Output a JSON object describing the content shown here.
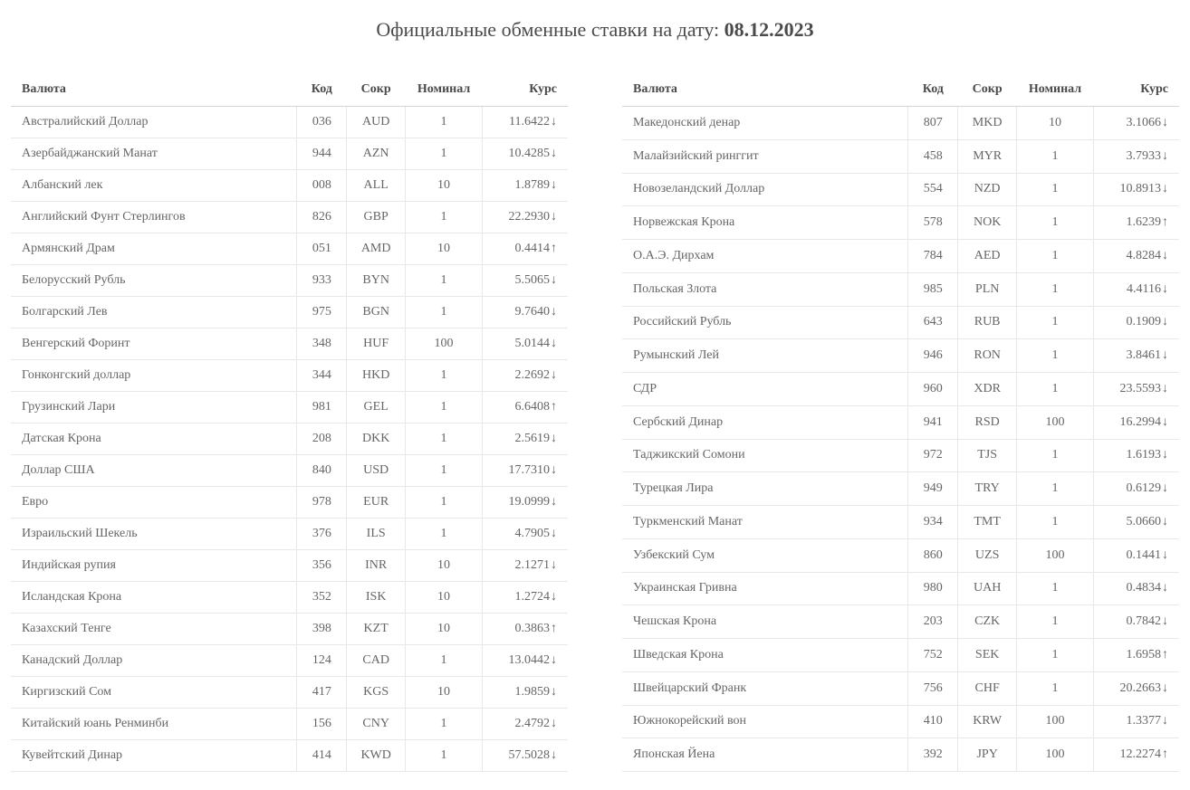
{
  "title_prefix": "Официальные обменные ставки на дату: ",
  "title_date": "08.12.2023",
  "headers": {
    "currency": "Валюта",
    "code": "Код",
    "abbr": "Сокр",
    "nominal": "Номинал",
    "rate": "Курс"
  },
  "colors": {
    "down": "#c9302c",
    "up": "#3c8c3c",
    "text": "#4a4a4a",
    "border": "#e8e8e8"
  },
  "arrows": {
    "down": "↓",
    "up": "↑"
  },
  "left_table": [
    {
      "currency": "Австралийский Доллар",
      "code": "036",
      "abbr": "AUD",
      "nominal": "1",
      "rate": "11.6422",
      "dir": "down"
    },
    {
      "currency": "Азербайджанский Манат",
      "code": "944",
      "abbr": "AZN",
      "nominal": "1",
      "rate": "10.4285",
      "dir": "down"
    },
    {
      "currency": "Албанский лек",
      "code": "008",
      "abbr": "ALL",
      "nominal": "10",
      "rate": "1.8789",
      "dir": "down"
    },
    {
      "currency": "Английский Фунт Стерлингов",
      "code": "826",
      "abbr": "GBP",
      "nominal": "1",
      "rate": "22.2930",
      "dir": "down"
    },
    {
      "currency": "Армянский Драм",
      "code": "051",
      "abbr": "AMD",
      "nominal": "10",
      "rate": "0.4414",
      "dir": "up"
    },
    {
      "currency": "Белорусский Рубль",
      "code": "933",
      "abbr": "BYN",
      "nominal": "1",
      "rate": "5.5065",
      "dir": "down"
    },
    {
      "currency": "Болгарский Лев",
      "code": "975",
      "abbr": "BGN",
      "nominal": "1",
      "rate": "9.7640",
      "dir": "down"
    },
    {
      "currency": "Венгерский Форинт",
      "code": "348",
      "abbr": "HUF",
      "nominal": "100",
      "rate": "5.0144",
      "dir": "down"
    },
    {
      "currency": "Гонконгский доллар",
      "code": "344",
      "abbr": "HKD",
      "nominal": "1",
      "rate": "2.2692",
      "dir": "down"
    },
    {
      "currency": "Грузинский Лари",
      "code": "981",
      "abbr": "GEL",
      "nominal": "1",
      "rate": "6.6408",
      "dir": "up"
    },
    {
      "currency": "Датская Крона",
      "code": "208",
      "abbr": "DKK",
      "nominal": "1",
      "rate": "2.5619",
      "dir": "down"
    },
    {
      "currency": "Доллар США",
      "code": "840",
      "abbr": "USD",
      "nominal": "1",
      "rate": "17.7310",
      "dir": "down"
    },
    {
      "currency": "Евро",
      "code": "978",
      "abbr": "EUR",
      "nominal": "1",
      "rate": "19.0999",
      "dir": "down"
    },
    {
      "currency": "Израильский Шекель",
      "code": "376",
      "abbr": "ILS",
      "nominal": "1",
      "rate": "4.7905",
      "dir": "down"
    },
    {
      "currency": "Индийская рупия",
      "code": "356",
      "abbr": "INR",
      "nominal": "10",
      "rate": "2.1271",
      "dir": "down"
    },
    {
      "currency": "Исландская Крона",
      "code": "352",
      "abbr": "ISK",
      "nominal": "10",
      "rate": "1.2724",
      "dir": "down"
    },
    {
      "currency": "Казахский Тенге",
      "code": "398",
      "abbr": "KZT",
      "nominal": "10",
      "rate": "0.3863",
      "dir": "up"
    },
    {
      "currency": "Канадский Доллар",
      "code": "124",
      "abbr": "CAD",
      "nominal": "1",
      "rate": "13.0442",
      "dir": "down"
    },
    {
      "currency": "Киргизский Сом",
      "code": "417",
      "abbr": "KGS",
      "nominal": "10",
      "rate": "1.9859",
      "dir": "down"
    },
    {
      "currency": "Китайский юань Ренминби",
      "code": "156",
      "abbr": "CNY",
      "nominal": "1",
      "rate": "2.4792",
      "dir": "down"
    },
    {
      "currency": "Кувейтский Динар",
      "code": "414",
      "abbr": "KWD",
      "nominal": "1",
      "rate": "57.5028",
      "dir": "down"
    }
  ],
  "right_table": [
    {
      "currency": "Македонский денар",
      "code": "807",
      "abbr": "MKD",
      "nominal": "10",
      "rate": "3.1066",
      "dir": "down"
    },
    {
      "currency": "Малайзийский ринггит",
      "code": "458",
      "abbr": "MYR",
      "nominal": "1",
      "rate": "3.7933",
      "dir": "down"
    },
    {
      "currency": "Новозеландский Доллар",
      "code": "554",
      "abbr": "NZD",
      "nominal": "1",
      "rate": "10.8913",
      "dir": "down"
    },
    {
      "currency": "Норвежская Крона",
      "code": "578",
      "abbr": "NOK",
      "nominal": "1",
      "rate": "1.6239",
      "dir": "up"
    },
    {
      "currency": "О.А.Э. Дирхам",
      "code": "784",
      "abbr": "AED",
      "nominal": "1",
      "rate": "4.8284",
      "dir": "down"
    },
    {
      "currency": "Польская Злота",
      "code": "985",
      "abbr": "PLN",
      "nominal": "1",
      "rate": "4.4116",
      "dir": "down"
    },
    {
      "currency": "Российский Рубль",
      "code": "643",
      "abbr": "RUB",
      "nominal": "1",
      "rate": "0.1909",
      "dir": "down"
    },
    {
      "currency": "Румынский Лей",
      "code": "946",
      "abbr": "RON",
      "nominal": "1",
      "rate": "3.8461",
      "dir": "down"
    },
    {
      "currency": "СДР",
      "code": "960",
      "abbr": "XDR",
      "nominal": "1",
      "rate": "23.5593",
      "dir": "down"
    },
    {
      "currency": "Сербский Динар",
      "code": "941",
      "abbr": "RSD",
      "nominal": "100",
      "rate": "16.2994",
      "dir": "down"
    },
    {
      "currency": "Таджикский Сомони",
      "code": "972",
      "abbr": "TJS",
      "nominal": "1",
      "rate": "1.6193",
      "dir": "down"
    },
    {
      "currency": "Турецкая Лира",
      "code": "949",
      "abbr": "TRY",
      "nominal": "1",
      "rate": "0.6129",
      "dir": "down"
    },
    {
      "currency": "Туркменский Манат",
      "code": "934",
      "abbr": "TMT",
      "nominal": "1",
      "rate": "5.0660",
      "dir": "down"
    },
    {
      "currency": "Узбекский Сум",
      "code": "860",
      "abbr": "UZS",
      "nominal": "100",
      "rate": "0.1441",
      "dir": "down"
    },
    {
      "currency": "Украинская Гривна",
      "code": "980",
      "abbr": "UAH",
      "nominal": "1",
      "rate": "0.4834",
      "dir": "down"
    },
    {
      "currency": "Чешская Крона",
      "code": "203",
      "abbr": "CZK",
      "nominal": "1",
      "rate": "0.7842",
      "dir": "down"
    },
    {
      "currency": "Шведская Крона",
      "code": "752",
      "abbr": "SEK",
      "nominal": "1",
      "rate": "1.6958",
      "dir": "up"
    },
    {
      "currency": "Швейцарский Франк",
      "code": "756",
      "abbr": "CHF",
      "nominal": "1",
      "rate": "20.2663",
      "dir": "down"
    },
    {
      "currency": "Южнокорейский вон",
      "code": "410",
      "abbr": "KRW",
      "nominal": "100",
      "rate": "1.3377",
      "dir": "down"
    },
    {
      "currency": "Японская Йена",
      "code": "392",
      "abbr": "JPY",
      "nominal": "100",
      "rate": "12.2274",
      "dir": "up"
    }
  ]
}
